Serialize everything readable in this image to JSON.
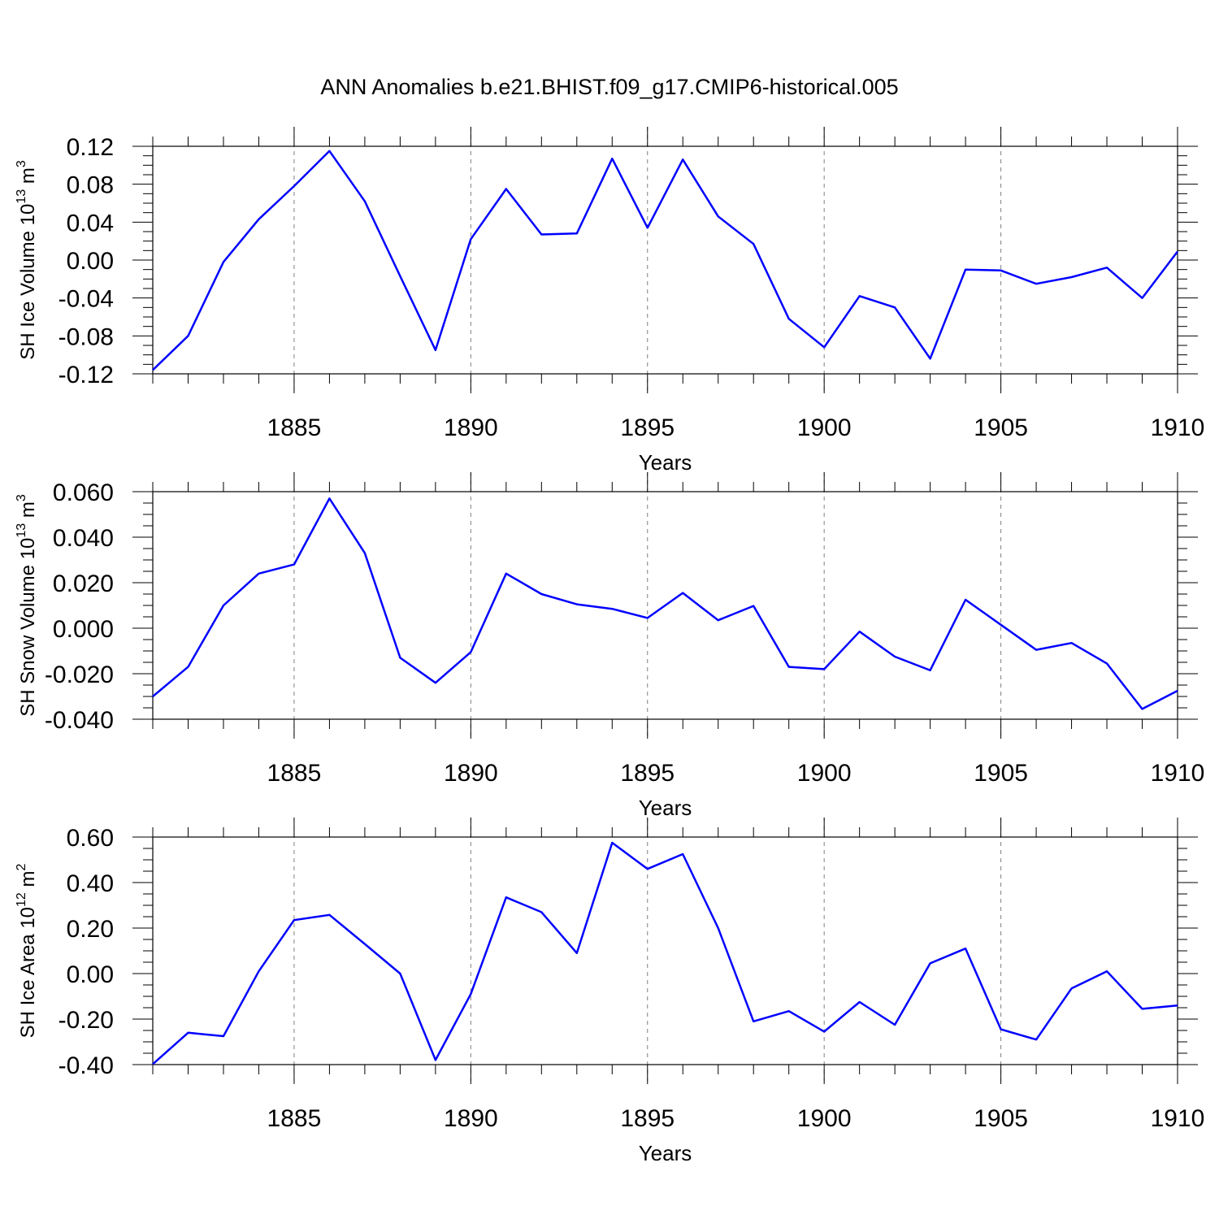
{
  "page": {
    "title": "ANN Anomalies b.e21.BHIST.f09_g17.CMIP6-historical.005"
  },
  "style": {
    "line_color": "#0000ff",
    "axis_color": "#000000",
    "grid_color": "#808080"
  },
  "chart_data": [
    {
      "type": "line",
      "title": "",
      "ylabel": {
        "base": "SH Ice Volume 10",
        "exp": "13",
        "unit": " m",
        "unit_exp": "3"
      },
      "xlabel": "Years",
      "xlim": [
        1881,
        1910
      ],
      "ylim": [
        -0.12,
        0.12
      ],
      "yticks": [
        -0.12,
        -0.08,
        -0.04,
        0.0,
        0.04,
        0.08,
        0.12
      ],
      "ytick_labels": [
        "-0.12",
        "-0.08",
        "-0.04",
        "0.00",
        "0.04",
        "0.08",
        "0.12"
      ],
      "xticks": [
        1885,
        1890,
        1895,
        1900,
        1905,
        1910
      ],
      "xtick_labels": [
        "1885",
        "1890",
        "1895",
        "1900",
        "1905",
        "1910"
      ],
      "grid": "dashed vertical at major x ticks",
      "series": [
        {
          "x": [
            1881,
            1882,
            1883,
            1884,
            1885,
            1886,
            1887,
            1888,
            1889,
            1890,
            1891,
            1892,
            1893,
            1894,
            1895,
            1896,
            1897,
            1898,
            1899,
            1900,
            1901,
            1902,
            1903,
            1904,
            1905,
            1906,
            1907,
            1908,
            1909,
            1910
          ],
          "values": [
            -0.116,
            -0.08,
            -0.002,
            0.043,
            0.078,
            0.115,
            0.062,
            -0.017,
            -0.095,
            0.022,
            0.075,
            0.027,
            0.028,
            0.107,
            0.034,
            0.106,
            0.046,
            0.017,
            -0.062,
            -0.092,
            -0.038,
            -0.05,
            -0.104,
            -0.01,
            -0.011,
            -0.025,
            -0.018,
            -0.008,
            -0.04,
            0.009
          ]
        }
      ]
    },
    {
      "type": "line",
      "title": "",
      "ylabel": {
        "base": "SH Snow Volume 10",
        "exp": "13",
        "unit": " m",
        "unit_exp": "3"
      },
      "xlabel": "Years",
      "xlim": [
        1881,
        1910
      ],
      "ylim": [
        -0.04,
        0.06
      ],
      "yticks": [
        -0.04,
        -0.02,
        0.0,
        0.02,
        0.04,
        0.06
      ],
      "ytick_labels": [
        "-0.040",
        "-0.020",
        "0.000",
        "0.020",
        "0.040",
        "0.060"
      ],
      "xticks": [
        1885,
        1890,
        1895,
        1900,
        1905,
        1910
      ],
      "xtick_labels": [
        "1885",
        "1890",
        "1895",
        "1900",
        "1905",
        "1910"
      ],
      "grid": "dashed vertical at major x ticks",
      "series": [
        {
          "x": [
            1881,
            1882,
            1883,
            1884,
            1885,
            1886,
            1887,
            1888,
            1889,
            1890,
            1891,
            1892,
            1893,
            1894,
            1895,
            1896,
            1897,
            1898,
            1899,
            1900,
            1901,
            1902,
            1903,
            1904,
            1905,
            1906,
            1907,
            1908,
            1909,
            1910
          ],
          "values": [
            -0.03,
            -0.017,
            0.01,
            0.024,
            0.028,
            0.057,
            0.033,
            -0.013,
            -0.024,
            -0.0105,
            0.024,
            0.015,
            0.0105,
            0.0085,
            0.0045,
            0.0155,
            0.0035,
            0.0098,
            -0.017,
            -0.018,
            -0.0015,
            -0.0125,
            -0.0185,
            0.0125,
            0.0015,
            -0.0095,
            -0.0065,
            -0.0155,
            -0.0355,
            -0.0275
          ]
        }
      ]
    },
    {
      "type": "line",
      "title": "",
      "ylabel": {
        "base": "SH Ice Area 10",
        "exp": "12",
        "unit": " m",
        "unit_exp": "2"
      },
      "xlabel": "Years",
      "xlim": [
        1881,
        1910
      ],
      "ylim": [
        -0.4,
        0.6
      ],
      "yticks": [
        -0.4,
        -0.2,
        0.0,
        0.2,
        0.4,
        0.6
      ],
      "ytick_labels": [
        "-0.40",
        "-0.20",
        "0.00",
        "0.20",
        "0.40",
        "0.60"
      ],
      "xticks": [
        1885,
        1890,
        1895,
        1900,
        1905,
        1910
      ],
      "xtick_labels": [
        "1885",
        "1890",
        "1895",
        "1900",
        "1905",
        "1910"
      ],
      "grid": "dashed vertical at major x ticks",
      "series": [
        {
          "x": [
            1881,
            1882,
            1883,
            1884,
            1885,
            1886,
            1887,
            1888,
            1889,
            1890,
            1891,
            1892,
            1893,
            1894,
            1895,
            1896,
            1897,
            1898,
            1899,
            1900,
            1901,
            1902,
            1903,
            1904,
            1905,
            1906,
            1907,
            1908,
            1909,
            1910
          ],
          "values": [
            -0.398,
            -0.26,
            -0.275,
            0.01,
            0.235,
            0.258,
            0.13,
            0.0,
            -0.38,
            -0.09,
            0.335,
            0.27,
            0.09,
            0.575,
            0.46,
            0.525,
            0.2,
            -0.21,
            -0.165,
            -0.255,
            -0.125,
            -0.225,
            0.045,
            0.11,
            -0.245,
            -0.29,
            -0.065,
            0.01,
            -0.155,
            -0.14
          ]
        }
      ]
    }
  ]
}
